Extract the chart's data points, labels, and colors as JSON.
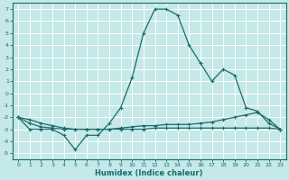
{
  "xlabel": "Humidex (Indice chaleur)",
  "background_color": "#c5e8e8",
  "grid_color": "#b0d8d8",
  "line_color": "#1a6b6b",
  "xlim": [
    -0.5,
    23.5
  ],
  "ylim": [
    -5.5,
    7.5
  ],
  "xticks": [
    0,
    1,
    2,
    3,
    4,
    5,
    6,
    7,
    8,
    9,
    10,
    11,
    12,
    13,
    14,
    15,
    16,
    17,
    18,
    19,
    20,
    21,
    22,
    23
  ],
  "yticks": [
    -5,
    -4,
    -3,
    -2,
    -1,
    0,
    1,
    2,
    3,
    4,
    5,
    6,
    7
  ],
  "curve1_x": [
    0,
    1,
    2,
    3,
    4,
    5,
    6,
    7,
    8,
    9,
    10,
    11,
    12,
    13,
    14,
    15,
    16,
    17,
    18,
    19,
    20,
    21,
    22,
    23
  ],
  "curve1_y": [
    -2.0,
    -3.0,
    -3.0,
    -3.0,
    -3.5,
    -4.7,
    -3.5,
    -3.5,
    -2.5,
    -1.2,
    1.3,
    5.0,
    7.0,
    7.0,
    6.5,
    4.0,
    2.5,
    1.0,
    2.0,
    1.5,
    -1.2,
    -1.5,
    -2.5,
    -3.0
  ],
  "curve2_x": [
    0,
    1,
    2,
    3,
    4,
    5,
    6,
    7,
    8,
    9,
    10,
    11,
    12,
    13,
    14,
    15,
    16,
    17,
    18,
    19,
    20,
    21,
    22,
    23
  ],
  "curve2_y": [
    -2.0,
    -2.5,
    -2.8,
    -2.9,
    -3.0,
    -3.0,
    -3.0,
    -3.0,
    -3.0,
    -2.9,
    -2.8,
    -2.7,
    -2.7,
    -2.6,
    -2.6,
    -2.6,
    -2.5,
    -2.4,
    -2.2,
    -2.0,
    -1.8,
    -1.6,
    -2.2,
    -3.0
  ],
  "curve3_x": [
    0,
    1,
    2,
    3,
    4,
    5,
    6,
    7,
    8,
    9,
    10,
    11,
    12,
    13,
    14,
    15,
    16,
    17,
    18,
    19,
    20,
    21,
    22,
    23
  ],
  "curve3_y": [
    -2.0,
    -2.2,
    -2.5,
    -2.7,
    -2.9,
    -3.0,
    -3.0,
    -3.0,
    -3.0,
    -3.0,
    -3.0,
    -3.0,
    -2.9,
    -2.9,
    -2.9,
    -2.9,
    -2.9,
    -2.9,
    -2.9,
    -2.9,
    -2.9,
    -2.9,
    -2.9,
    -3.0
  ]
}
